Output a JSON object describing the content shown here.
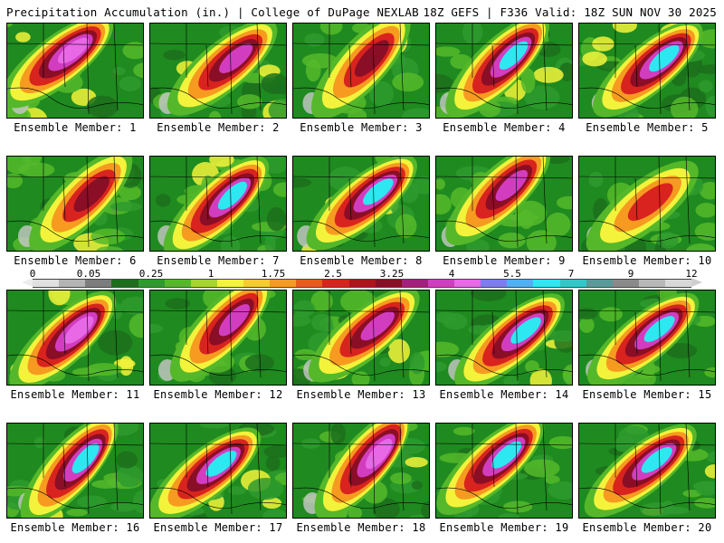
{
  "header": {
    "left": "Precipitation Accumulation (in.) | College of DuPage NEXLAB",
    "right": "18Z GEFS | F336 Valid: 18Z SUN NOV 30 2025"
  },
  "colorbar": {
    "labels": [
      "0",
      "0.05",
      "0.25",
      "1",
      "1.75",
      "2.5",
      "3.25",
      "4",
      "5.5",
      "7",
      "9",
      "12"
    ],
    "colors": [
      "#e0e0e0",
      "#b4b4b4",
      "#7d7d7d",
      "#1c6e1c",
      "#2e9a2e",
      "#55b82a",
      "#a6d62a",
      "#f3f33b",
      "#f7cc2c",
      "#f69b20",
      "#ea5a1c",
      "#d9231e",
      "#b0131c",
      "#8a0e26",
      "#a51f7c",
      "#d23dc0",
      "#e868e6",
      "#7d7df0",
      "#4fb0f5",
      "#2de8f0",
      "#30c8c8",
      "#5a9a9a",
      "#8a8a8a",
      "#b8b8b8",
      "#d8d8d8"
    ],
    "left_arrow_color": "#ededed",
    "right_arrow_color": "#cfcfcf"
  },
  "members": [
    {
      "label": "Ensemble Member: 1",
      "max": "5.5"
    },
    {
      "label": "Ensemble Member: 2",
      "max": "4"
    },
    {
      "label": "Ensemble Member: 3",
      "max": "3.25"
    },
    {
      "label": "Ensemble Member: 4",
      "max": "7"
    },
    {
      "label": "Ensemble Member: 5",
      "max": "7"
    },
    {
      "label": "Ensemble Member: 6",
      "max": "3.25"
    },
    {
      "label": "Ensemble Member: 7",
      "max": "7"
    },
    {
      "label": "Ensemble Member: 8",
      "max": "7"
    },
    {
      "label": "Ensemble Member: 9",
      "max": "4"
    },
    {
      "label": "Ensemble Member: 10",
      "max": "2.5"
    },
    {
      "label": "Ensemble Member: 11",
      "max": "5.5"
    },
    {
      "label": "Ensemble Member: 12",
      "max": "4"
    },
    {
      "label": "Ensemble Member: 13",
      "max": "4"
    },
    {
      "label": "Ensemble Member: 14",
      "max": "7"
    },
    {
      "label": "Ensemble Member: 15",
      "max": "7"
    },
    {
      "label": "Ensemble Member: 16",
      "max": "7"
    },
    {
      "label": "Ensemble Member: 17",
      "max": "7"
    },
    {
      "label": "Ensemble Member: 18",
      "max": "5.5"
    },
    {
      "label": "Ensemble Member: 19",
      "max": "7"
    },
    {
      "label": "Ensemble Member: 20",
      "max": "7"
    }
  ]
}
